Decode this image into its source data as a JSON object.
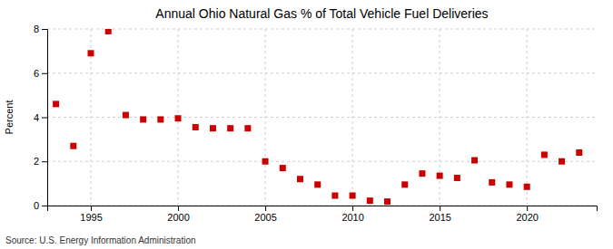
{
  "chart_data": {
    "type": "scatter",
    "title": "Annual Ohio Natural Gas % of Total Vehicle Fuel Deliveries",
    "ylabel": "Percent",
    "source": "Source: U.S. Energy Information Administration",
    "x": [
      1993,
      1994,
      1995,
      1996,
      1997,
      1998,
      1999,
      2000,
      2001,
      2002,
      2003,
      2004,
      2005,
      2006,
      2007,
      2008,
      2009,
      2010,
      2011,
      2012,
      2013,
      2014,
      2015,
      2016,
      2017,
      2018,
      2019,
      2020,
      2021,
      2022,
      2023
    ],
    "values": [
      4.6,
      2.7,
      6.9,
      7.9,
      4.1,
      3.9,
      3.9,
      3.95,
      3.55,
      3.5,
      3.5,
      3.5,
      2.0,
      1.7,
      1.2,
      0.95,
      0.45,
      0.45,
      0.22,
      0.18,
      0.95,
      1.45,
      1.35,
      1.25,
      2.05,
      1.05,
      0.95,
      0.85,
      2.3,
      2.0,
      2.4
    ],
    "color": "#cc0000",
    "marker": "square",
    "xlim": [
      1992.5,
      2024
    ],
    "xticks": [
      1995,
      2000,
      2005,
      2010,
      2015,
      2020
    ],
    "ylim": [
      0,
      8
    ],
    "yticks": [
      0,
      2,
      4,
      6,
      8
    ],
    "grid": true
  }
}
